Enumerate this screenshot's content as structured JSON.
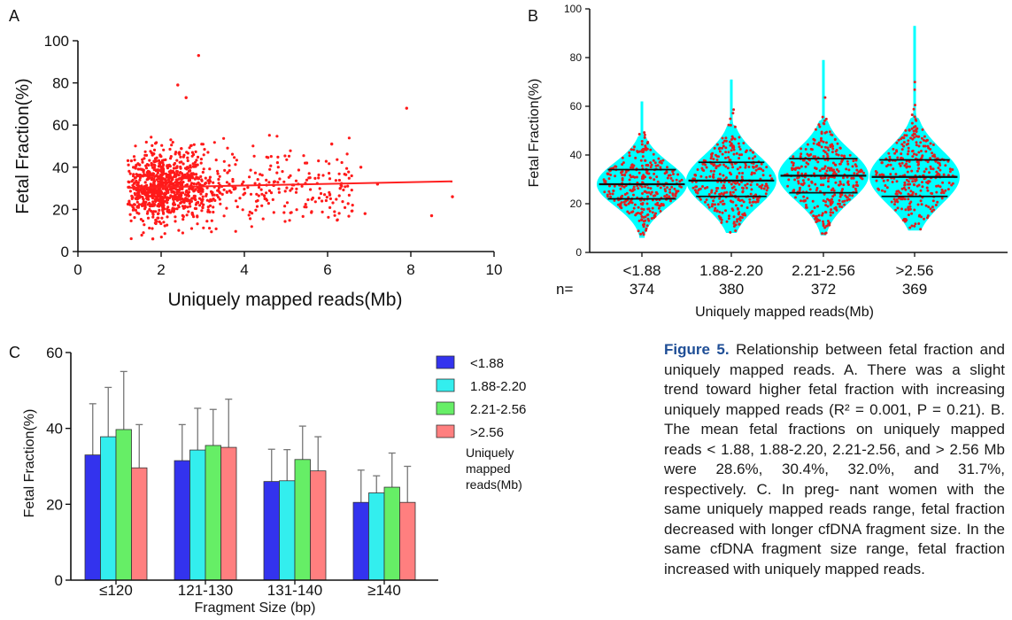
{
  "panels": {
    "a": "A",
    "b": "B",
    "c": "C"
  },
  "chart_data": [
    {
      "id": "A",
      "type": "scatter",
      "xlabel": "Uniquely mapped reads(Mb)",
      "ylabel": "Fetal Fraction(%)",
      "xlim": [
        0,
        10
      ],
      "ylim": [
        0,
        100
      ],
      "xticks": [
        "0",
        "2",
        "4",
        "6",
        "8",
        "10"
      ],
      "yticks": [
        "0",
        "20",
        "40",
        "60",
        "80",
        "100"
      ],
      "trendline": {
        "x": [
          1.2,
          9.0
        ],
        "y": [
          30.2,
          33.3
        ]
      },
      "highlight_points": [
        {
          "x": 2.9,
          "y": 93
        },
        {
          "x": 7.9,
          "y": 68
        },
        {
          "x": 9.0,
          "y": 26
        },
        {
          "x": 8.5,
          "y": 17
        },
        {
          "x": 6.9,
          "y": 18
        },
        {
          "x": 6.1,
          "y": 51
        },
        {
          "x": 7.2,
          "y": 32
        },
        {
          "x": 5.5,
          "y": 42
        },
        {
          "x": 2.4,
          "y": 79
        },
        {
          "x": 2.6,
          "y": 73
        },
        {
          "x": 1.8,
          "y": 6
        },
        {
          "x": 6.8,
          "y": 40
        }
      ],
      "color": "#ff1a1a"
    },
    {
      "id": "B",
      "type": "violin",
      "xlabel": "Uniquely mapped reads(Mb)",
      "ylabel": "Fetal Fraction(%)",
      "ylim": [
        0,
        100
      ],
      "yticks": [
        "0",
        "20",
        "40",
        "60",
        "80",
        "100"
      ],
      "categories": [
        "<1.88",
        "1.88-2.20",
        "2.21-2.56",
        ">2.56"
      ],
      "n_label": "n=",
      "counts": [
        "374",
        "380",
        "372",
        "369"
      ],
      "quartiles": [
        [
          22,
          28,
          34
        ],
        [
          23,
          29.5,
          37
        ],
        [
          24.5,
          31.5,
          38.5
        ],
        [
          23,
          31,
          38
        ]
      ],
      "range": [
        [
          6,
          62
        ],
        [
          8,
          71
        ],
        [
          7,
          79
        ],
        [
          9,
          93
        ]
      ],
      "fill": "#00ffff",
      "dot_color": "#e02020"
    },
    {
      "id": "C",
      "type": "bar",
      "xlabel": "Fragment Size (bp)",
      "ylabel": "Fetal Fraction(%)",
      "ylim": [
        0,
        60
      ],
      "yticks": [
        "0",
        "20",
        "40",
        "60"
      ],
      "categories": [
        "≤120",
        "121-130",
        "131-140",
        "≥140"
      ],
      "series": [
        {
          "name": "<1.88",
          "color": "#3333ee",
          "values": [
            33,
            31.5,
            26,
            20.5
          ],
          "err": [
            13.5,
            9.5,
            8.5,
            8.5
          ]
        },
        {
          "name": "1.88-2.20",
          "color": "#33eeee",
          "values": [
            37.8,
            34.3,
            26.2,
            23
          ],
          "err": [
            13,
            11,
            8.2,
            4.5
          ]
        },
        {
          "name": "2.21-2.56",
          "color": "#66ee66",
          "values": [
            39.7,
            35.5,
            31.8,
            24.5
          ],
          "err": [
            15.3,
            9.5,
            8.8,
            9
          ]
        },
        {
          "name": ">2.56",
          "color": "#ff7f7f",
          "values": [
            29.6,
            35,
            28.8,
            20.5
          ],
          "err": [
            11.4,
            12.7,
            9,
            9.5
          ]
        }
      ],
      "legend_title": [
        "Uniquely",
        "mapped",
        "reads(Mb)"
      ]
    }
  ],
  "caption": {
    "label": "Figure 5.",
    "lines": [
      "Relationship between fetal fraction and",
      "uniquely mapped reads. A. There was a slight trend",
      "toward higher fetal fraction with increasing uniquely",
      "mapped reads (R² = 0.001, P = 0.21). B. The mean",
      "fetal fractions on uniquely mapped reads < 1.88,",
      "1.88-2.20, 2.21-2.56, and > 2.56 Mb were 28.6%,",
      "30.4%, 32.0%, and 31.7%, respectively. C. In preg-",
      "nant women with the same uniquely mapped reads",
      "range, fetal fraction decreased with longer cfDNA",
      "fragment size. In the same cfDNA fragment size",
      "range, fetal fraction increased with uniquely mapped",
      "reads."
    ]
  }
}
